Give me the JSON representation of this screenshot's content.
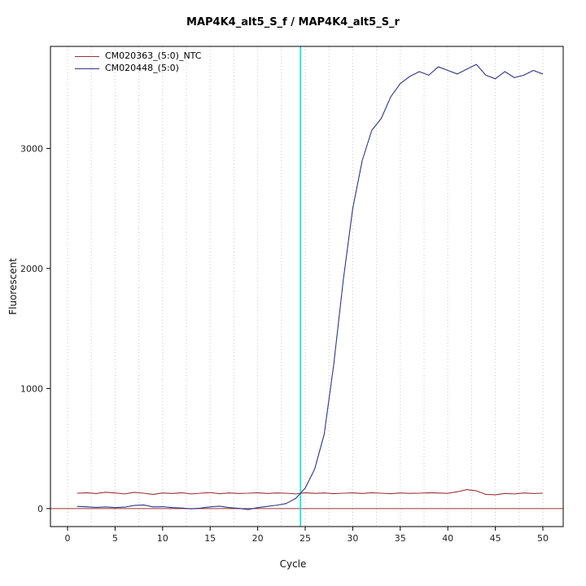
{
  "chart_data": {
    "type": "line",
    "title": "MAP4K4_alt5_S_f / MAP4K4_alt5_S_r",
    "xlabel": "Cycle",
    "ylabel": "Fluorescent",
    "xlim": [
      0,
      50
    ],
    "ylim": [
      -150,
      3850
    ],
    "xticks": [
      0,
      5,
      10,
      15,
      20,
      25,
      30,
      35,
      40,
      45,
      50
    ],
    "yticks": [
      0,
      1000,
      2000,
      3000
    ],
    "grid": "vertical-dotted-every-2.5-cycles",
    "legend_position": "top-left",
    "threshold_line": {
      "x": 24.5,
      "color": "#00e5ee"
    },
    "baseline": {
      "y": 0,
      "color": "#993333"
    },
    "x": [
      1,
      2,
      3,
      4,
      5,
      6,
      7,
      8,
      9,
      10,
      11,
      12,
      13,
      14,
      15,
      16,
      17,
      18,
      19,
      20,
      21,
      22,
      23,
      24,
      25,
      26,
      27,
      28,
      29,
      30,
      31,
      32,
      33,
      34,
      35,
      36,
      37,
      38,
      39,
      40,
      41,
      42,
      43,
      44,
      45,
      46,
      47,
      48,
      49,
      50
    ],
    "series": [
      {
        "name": "CM020363_(5:0)_NTC",
        "color": "#993333",
        "values": [
          128,
          132,
          125,
          136,
          130,
          122,
          135,
          128,
          118,
          130,
          126,
          132,
          122,
          128,
          133,
          124,
          130,
          126,
          128,
          132,
          126,
          130,
          128,
          122,
          132,
          127,
          130,
          124,
          128,
          131,
          126,
          132,
          128,
          124,
          130,
          127,
          128,
          132,
          130,
          127,
          140,
          158,
          148,
          118,
          115,
          126,
          122,
          130,
          126,
          128
        ]
      },
      {
        "name": "CM020448_(5:0)",
        "color": "#333388",
        "values": [
          18,
          15,
          10,
          14,
          8,
          12,
          26,
          30,
          14,
          16,
          8,
          5,
          -2,
          4,
          14,
          20,
          8,
          2,
          -8,
          8,
          18,
          28,
          42,
          85,
          170,
          330,
          620,
          1200,
          1900,
          2500,
          2900,
          3150,
          3250,
          3430,
          3540,
          3600,
          3640,
          3610,
          3680,
          3650,
          3620,
          3660,
          3700,
          3610,
          3580,
          3640,
          3590,
          3610,
          3650,
          3620
        ]
      }
    ]
  }
}
